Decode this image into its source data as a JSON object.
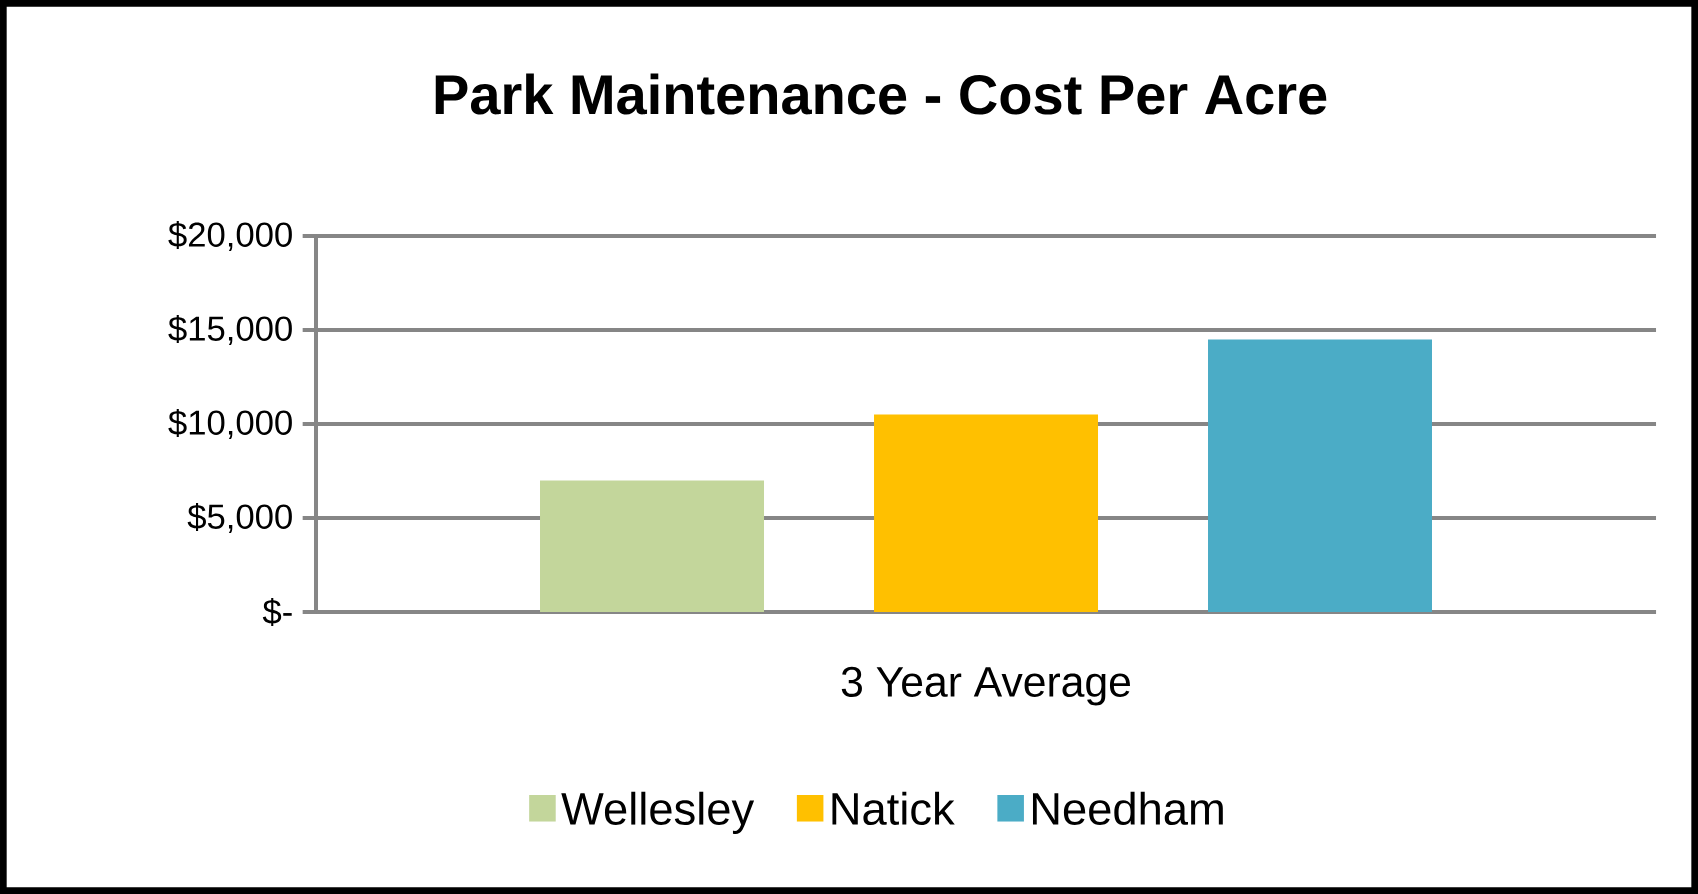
{
  "chart_data": {
    "type": "bar",
    "title": "Park Maintenance - Cost Per Acre",
    "categories": [
      "3 Year Average"
    ],
    "series": [
      {
        "name": "Wellesley",
        "color": "#c3d69b",
        "values": [
          7000
        ]
      },
      {
        "name": "Natick",
        "color": "#ffc000",
        "values": [
          10500
        ]
      },
      {
        "name": "Needham",
        "color": "#4bacc6",
        "values": [
          14500
        ]
      }
    ],
    "ylim": [
      0,
      20000
    ],
    "yticks": [
      {
        "value": 0,
        "label": "$-"
      },
      {
        "value": 5000,
        "label": "$5,000"
      },
      {
        "value": 10000,
        "label": "$10,000"
      },
      {
        "value": 15000,
        "label": "$15,000"
      },
      {
        "value": 20000,
        "label": "$20,000"
      }
    ],
    "grid": "y",
    "legend": "bottom"
  }
}
